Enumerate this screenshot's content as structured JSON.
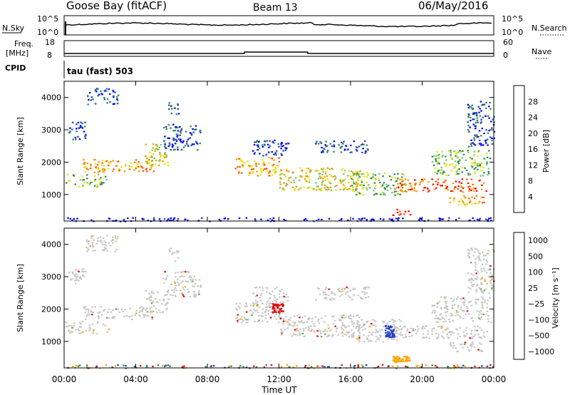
{
  "header": {
    "station": "Goose Bay (fitACF)",
    "beam": "Beam 13",
    "date": "06/May/2016"
  },
  "top_panels": {
    "nsky_label": "N.Sky",
    "nsearch_label": "N.Search",
    "noise_ticks_left": [
      "10^5",
      "10^0"
    ],
    "noise_ticks_right": [
      "10^5",
      "10^0"
    ],
    "freq_label_1": "Freq.",
    "freq_label_2": "[MHz]",
    "freq_ticks": [
      "18",
      "8"
    ],
    "nave_label": "Nave",
    "nave_ticks": [
      "60",
      "0"
    ],
    "cpid_label": "CPID",
    "cpid_text": "tau (fast) 503"
  },
  "chart_data": [
    {
      "type": "heatmap",
      "name": "power",
      "ylabel": "Slant Range [km]",
      "yticks": [
        "4000",
        "3000",
        "2000",
        "1000"
      ],
      "ylim": [
        180,
        4500
      ],
      "colorbar_label": "Power [dB]",
      "colorbar_ticks": [
        "28",
        "24",
        "20",
        "16",
        "12",
        "8",
        "4"
      ],
      "colorbar_colors": [
        "#0000ff",
        "#2e4bb0",
        "#2e8b57",
        "#7cc36a",
        "#e6e600",
        "#ff9900",
        "#ff5a00",
        "#ff0000"
      ]
    },
    {
      "type": "heatmap",
      "name": "velocity",
      "ylabel": "Slant Range [km]",
      "yticks": [
        "4000",
        "3000",
        "2000",
        "1000"
      ],
      "ylim": [
        180,
        4500
      ],
      "colorbar_label": "Velocity [m s⁻¹]",
      "colorbar_ticks": [
        "1000",
        "500",
        "100",
        "25",
        "−25",
        "−100",
        "−500",
        "−1000"
      ],
      "colorbar_colors": [
        "#2040c0",
        "#2e8b57",
        "#55b83a",
        "#c8c8c8",
        "#c8c8c8",
        "#ffa500",
        "#ff6a00",
        "#e01010"
      ]
    }
  ],
  "x_axis": {
    "ticks": [
      "00:00",
      "04:00",
      "08:00",
      "12:00",
      "16:00",
      "20:00",
      "00:00"
    ],
    "label": "Time UT"
  },
  "scatter_regions": [
    {
      "t": [
        0.0,
        2.5
      ],
      "r": [
        1250,
        1650
      ],
      "level": 3
    },
    {
      "t": [
        1.0,
        5.0
      ],
      "r": [
        1700,
        2100
      ],
      "level": 5
    },
    {
      "t": [
        4.5,
        5.8
      ],
      "r": [
        1900,
        2600
      ],
      "level": 4
    },
    {
      "t": [
        0.2,
        1.2
      ],
      "r": [
        2700,
        3300
      ],
      "level": 1
    },
    {
      "t": [
        5.5,
        7.6
      ],
      "r": [
        2400,
        3200
      ],
      "level": 1
    },
    {
      "t": [
        1.2,
        3.0
      ],
      "r": [
        3800,
        4300
      ],
      "level": 1
    },
    {
      "t": [
        5.8,
        6.4
      ],
      "r": [
        3500,
        3900
      ],
      "level": 1
    },
    {
      "t": [
        9.5,
        12.0
      ],
      "r": [
        1600,
        2200
      ],
      "level": 5
    },
    {
      "t": [
        12.0,
        16.5
      ],
      "r": [
        1150,
        1850
      ],
      "level": 4
    },
    {
      "t": [
        10.5,
        12.5
      ],
      "r": [
        2200,
        2700
      ],
      "level": 1
    },
    {
      "t": [
        16.0,
        19.0
      ],
      "r": [
        1000,
        1700
      ],
      "level": 3
    },
    {
      "t": [
        18.5,
        23.6
      ],
      "r": [
        1100,
        1500
      ],
      "level": 6
    },
    {
      "t": [
        20.5,
        23.8
      ],
      "r": [
        1600,
        2400
      ],
      "level": 3
    },
    {
      "t": [
        21.5,
        23.5
      ],
      "r": [
        700,
        1000
      ],
      "level": 5
    },
    {
      "t": [
        18.3,
        19.3
      ],
      "r": [
        380,
        560
      ],
      "level": 7
    },
    {
      "t": [
        22.5,
        24.0
      ],
      "r": [
        2500,
        3900
      ],
      "level": 1
    },
    {
      "t": [
        14.0,
        17.0
      ],
      "r": [
        2300,
        2700
      ],
      "level": 1
    },
    {
      "t": [
        0.0,
        24.0
      ],
      "r": [
        190,
        300
      ],
      "level": 0
    }
  ]
}
